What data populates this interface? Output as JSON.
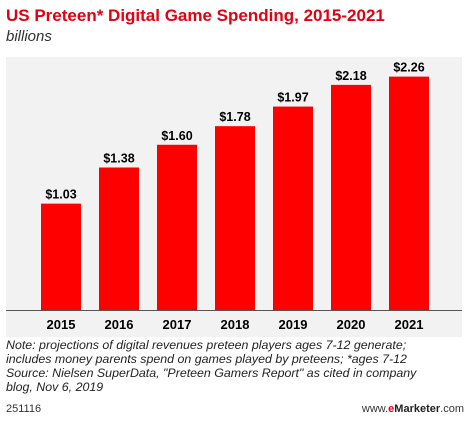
{
  "header": {
    "title": "US Preteen* Digital Game Spending, 2015-2021",
    "subtitle": "billions"
  },
  "chart_data": {
    "type": "bar",
    "title": "US Preteen* Digital Game Spending, 2015-2021",
    "subtitle": "billions",
    "categories": [
      "2015",
      "2016",
      "2017",
      "2018",
      "2019",
      "2020",
      "2021"
    ],
    "values": [
      1.03,
      1.38,
      1.6,
      1.78,
      1.97,
      2.18,
      2.26
    ],
    "value_labels": [
      "$1.03",
      "$1.38",
      "$1.60",
      "$1.78",
      "$1.97",
      "$2.18",
      "$2.26"
    ],
    "xlabel": "",
    "ylabel": "",
    "ylim": [
      0,
      2.45
    ],
    "grid": false,
    "legend": "none",
    "bar_color": "#ff0000"
  },
  "notes": {
    "lines": [
      "Note: projections of digital revenues preteen players ages 7-12 generate;",
      "includes money parents spend on games played by preteens; *ages 7-12",
      "Source: Nielsen SuperData, \"Preteen Gamers Report\" as cited in company",
      "blog, Nov 6, 2019"
    ]
  },
  "footer": {
    "chart_id": "251116",
    "brand_prefix": "www.",
    "brand_e": "e",
    "brand_main": "Marketer",
    "brand_suffix": ".com"
  },
  "colors": {
    "accent": "#e3000f",
    "bar": "#ff0000",
    "plot_background": "#f2f2f2"
  }
}
